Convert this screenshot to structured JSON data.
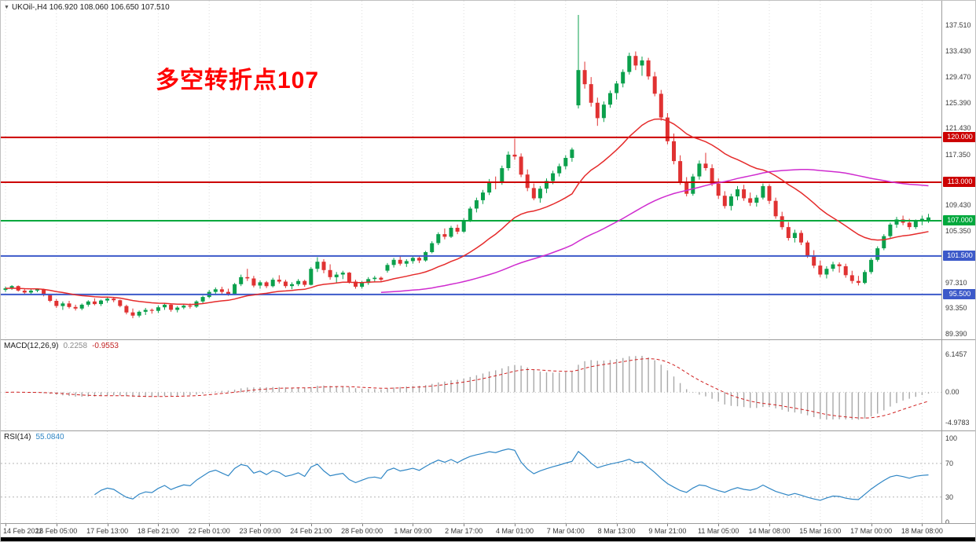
{
  "header": {
    "symbol_info": "UKOil-,H4 106.920 108.060 106.650 107.510",
    "annotation": "多空转折点107"
  },
  "colors": {
    "background": "#ffffff",
    "up_candle": "#0ba04c",
    "down_candle": "#e03232",
    "ma_fast": "#e52b2b",
    "ma_slow": "#cf2bcf",
    "grid": "#dcdcdc",
    "macd_histogram": "#a9a9a9",
    "macd_signal": "#d02020",
    "rsi_line": "#2f86c5",
    "annotation": "#ff0000",
    "axis_text": "#3a3a3a",
    "level_red": "#cc0000",
    "level_green": "#00a83c",
    "level_blue": "#3c59c9"
  },
  "chart_data": [
    {
      "type": "candlestick",
      "title": "UKOil-,H4",
      "timeframe": "H4",
      "ohlc_display": {
        "open": "106.920",
        "high": "108.060",
        "low": "106.650",
        "close": "107.510"
      },
      "y_range": [
        88.5,
        141.3
      ],
      "y_axis_ticks": [
        "137.510",
        "133.430",
        "129.470",
        "125.390",
        "121.430",
        "117.350",
        "109.430",
        "105.350",
        "97.310",
        "93.350",
        "89.390"
      ],
      "x_labels": [
        "14 Feb 2022",
        "16 Feb 05:00",
        "17 Feb 13:00",
        "18 Feb 21:00",
        "22 Feb 01:00",
        "23 Feb 09:00",
        "24 Feb 21:00",
        "28 Feb 00:00",
        "1 Mar 09:00",
        "2 Mar 17:00",
        "4 Mar 01:00",
        "7 Mar 04:00",
        "8 Mar 13:00",
        "9 Mar 21:00",
        "11 Mar 05:00",
        "14 Mar 08:00",
        "15 Mar 16:00",
        "17 Mar 00:00",
        "18 Mar 08:00"
      ],
      "x_label_step": 8,
      "hlines": [
        {
          "price": 120.0,
          "label": "120.000",
          "color": "#cc0000"
        },
        {
          "price": 113.0,
          "label": "113.000",
          "color": "#cc0000"
        },
        {
          "price": 107.0,
          "label": "107.000",
          "color": "#00a83c"
        },
        {
          "price": 101.5,
          "label": "101.500",
          "color": "#3c59c9"
        },
        {
          "price": 95.5,
          "label": "95.500",
          "color": "#3c59c9"
        }
      ],
      "moving_averages": [
        {
          "name": "ma-fast-line",
          "method": "ema",
          "period": 24,
          "color": "#e52b2b"
        },
        {
          "name": "ma-slow-line",
          "method": "sma",
          "period": 60,
          "color": "#cf2bcf"
        }
      ],
      "candles": [
        [
          96.2,
          96.75,
          95.9,
          96.45
        ],
        [
          96.45,
          96.95,
          96.2,
          96.8
        ],
        [
          96.8,
          96.9,
          95.95,
          96.1
        ],
        [
          96.1,
          96.4,
          95.6,
          95.8
        ],
        [
          95.8,
          96.3,
          95.55,
          96.1
        ],
        [
          96.1,
          96.45,
          95.85,
          96.3
        ],
        [
          96.3,
          96.4,
          95.2,
          95.4
        ],
        [
          95.4,
          95.6,
          94.3,
          94.5
        ],
        [
          94.5,
          94.8,
          93.4,
          93.7
        ],
        [
          93.7,
          94.4,
          93.1,
          94.1
        ],
        [
          94.1,
          94.5,
          93.3,
          93.55
        ],
        [
          93.55,
          93.9,
          93.0,
          93.3
        ],
        [
          93.3,
          94.1,
          93.05,
          93.9
        ],
        [
          93.9,
          94.6,
          93.6,
          94.4
        ],
        [
          94.4,
          94.9,
          93.8,
          94.0
        ],
        [
          94.0,
          94.7,
          93.7,
          94.55
        ],
        [
          94.55,
          95.1,
          94.2,
          94.85
        ],
        [
          94.85,
          95.0,
          94.3,
          94.6
        ],
        [
          94.6,
          94.7,
          93.5,
          93.7
        ],
        [
          93.7,
          93.9,
          92.4,
          92.7
        ],
        [
          92.7,
          93.3,
          91.8,
          92.2
        ],
        [
          92.2,
          93.0,
          91.9,
          92.8
        ],
        [
          92.8,
          93.4,
          92.3,
          93.1
        ],
        [
          93.1,
          93.3,
          92.5,
          92.95
        ],
        [
          92.95,
          93.8,
          92.6,
          93.5
        ],
        [
          93.5,
          94.2,
          93.1,
          93.9
        ],
        [
          93.9,
          94.1,
          92.8,
          93.1
        ],
        [
          93.1,
          93.7,
          92.7,
          93.45
        ],
        [
          93.45,
          94.0,
          93.2,
          93.75
        ],
        [
          93.75,
          94.1,
          93.3,
          93.6
        ],
        [
          93.6,
          94.6,
          93.4,
          94.4
        ],
        [
          94.4,
          95.3,
          94.1,
          95.1
        ],
        [
          95.1,
          96.2,
          94.9,
          95.9
        ],
        [
          95.9,
          96.6,
          95.4,
          96.3
        ],
        [
          96.3,
          96.7,
          95.6,
          95.9
        ],
        [
          95.9,
          96.4,
          95.3,
          95.5
        ],
        [
          95.5,
          97.3,
          95.4,
          97.1
        ],
        [
          97.1,
          98.6,
          96.8,
          98.2
        ],
        [
          98.2,
          99.5,
          97.6,
          98.0
        ],
        [
          98.0,
          98.4,
          96.6,
          96.9
        ],
        [
          96.9,
          97.7,
          96.4,
          97.4
        ],
        [
          97.4,
          97.6,
          96.5,
          96.8
        ],
        [
          96.8,
          98.1,
          96.6,
          97.8
        ],
        [
          97.8,
          98.5,
          97.2,
          97.5
        ],
        [
          97.5,
          97.8,
          96.5,
          96.8
        ],
        [
          96.8,
          97.4,
          96.3,
          97.1
        ],
        [
          97.1,
          97.9,
          96.8,
          97.6
        ],
        [
          97.6,
          97.8,
          96.7,
          97.0
        ],
        [
          97.0,
          99.8,
          96.9,
          99.5
        ],
        [
          99.5,
          101.3,
          99.0,
          100.6
        ],
        [
          100.6,
          101.0,
          98.8,
          99.3
        ],
        [
          99.3,
          100.2,
          97.8,
          98.2
        ],
        [
          98.2,
          99.0,
          97.3,
          98.6
        ],
        [
          98.6,
          99.2,
          97.9,
          98.9
        ],
        [
          98.9,
          99.0,
          97.2,
          97.5
        ],
        [
          97.5,
          97.8,
          96.4,
          96.7
        ],
        [
          96.7,
          97.6,
          96.4,
          97.3
        ],
        [
          97.3,
          98.2,
          97.0,
          97.9
        ],
        [
          97.9,
          98.4,
          97.4,
          98.1
        ],
        [
          98.1,
          98.3,
          97.5,
          97.8
        ],
        [
          99.2,
          100.4,
          98.9,
          100.1
        ],
        [
          100.1,
          101.2,
          99.7,
          100.9
        ],
        [
          100.9,
          101.4,
          100.0,
          100.3
        ],
        [
          100.3,
          101.0,
          99.8,
          100.7
        ],
        [
          100.7,
          101.5,
          100.3,
          101.2
        ],
        [
          101.2,
          101.4,
          100.4,
          100.8
        ],
        [
          100.8,
          102.3,
          100.6,
          102.1
        ],
        [
          102.1,
          103.8,
          101.9,
          103.5
        ],
        [
          103.5,
          105.2,
          103.2,
          104.9
        ],
        [
          104.9,
          105.8,
          104.1,
          104.5
        ],
        [
          104.5,
          106.2,
          104.3,
          105.9
        ],
        [
          105.9,
          106.4,
          104.9,
          105.3
        ],
        [
          105.3,
          107.4,
          105.1,
          107.1
        ],
        [
          107.1,
          109.2,
          106.8,
          108.9
        ],
        [
          108.9,
          110.6,
          108.3,
          110.2
        ],
        [
          110.2,
          111.8,
          109.6,
          111.4
        ],
        [
          111.4,
          113.5,
          111.0,
          113.1
        ],
        [
          113.1,
          113.9,
          111.9,
          112.9
        ],
        [
          112.9,
          115.6,
          112.6,
          115.2
        ],
        [
          115.2,
          117.8,
          114.8,
          117.3
        ],
        [
          117.3,
          119.8,
          116.5,
          117.0
        ],
        [
          117.0,
          117.5,
          113.8,
          114.2
        ],
        [
          114.2,
          115.0,
          111.6,
          112.1
        ],
        [
          112.1,
          112.8,
          110.2,
          110.5
        ],
        [
          110.5,
          112.4,
          109.8,
          112.0
        ],
        [
          112.0,
          113.6,
          111.3,
          113.2
        ],
        [
          113.2,
          114.8,
          112.7,
          114.4
        ],
        [
          114.4,
          115.9,
          113.9,
          115.5
        ],
        [
          115.5,
          117.2,
          115.0,
          116.8
        ],
        [
          116.8,
          118.4,
          116.2,
          118.1
        ],
        [
          125.0,
          139.1,
          124.5,
          130.5
        ],
        [
          130.5,
          131.8,
          127.6,
          128.3
        ],
        [
          128.3,
          129.4,
          124.8,
          125.4
        ],
        [
          125.4,
          126.2,
          121.8,
          123.0
        ],
        [
          123.0,
          125.6,
          122.4,
          125.1
        ],
        [
          125.1,
          127.3,
          124.6,
          126.9
        ],
        [
          126.9,
          128.8,
          125.9,
          128.4
        ],
        [
          128.4,
          130.6,
          127.8,
          130.2
        ],
        [
          130.2,
          133.2,
          129.8,
          132.7
        ],
        [
          132.7,
          133.4,
          130.5,
          131.2
        ],
        [
          131.2,
          132.6,
          129.6,
          132.0
        ],
        [
          132.0,
          132.4,
          129.0,
          129.5
        ],
        [
          129.5,
          130.2,
          126.4,
          126.8
        ],
        [
          126.8,
          127.4,
          122.6,
          123.1
        ],
        [
          123.1,
          123.8,
          118.9,
          119.4
        ],
        [
          119.4,
          120.6,
          115.8,
          116.3
        ],
        [
          116.3,
          117.2,
          112.6,
          113.1
        ],
        [
          113.1,
          113.8,
          110.8,
          111.2
        ],
        [
          111.2,
          114.3,
          110.9,
          113.9
        ],
        [
          113.9,
          116.4,
          113.4,
          115.9
        ],
        [
          115.9,
          117.6,
          114.8,
          115.2
        ],
        [
          115.2,
          115.8,
          112.4,
          112.8
        ],
        [
          112.8,
          113.6,
          110.4,
          110.9
        ],
        [
          110.9,
          111.6,
          108.9,
          109.3
        ],
        [
          109.3,
          111.2,
          108.6,
          110.8
        ],
        [
          110.8,
          112.4,
          110.2,
          111.9
        ],
        [
          111.9,
          112.6,
          110.1,
          110.5
        ],
        [
          110.5,
          111.4,
          109.3,
          109.8
        ],
        [
          109.8,
          111.0,
          109.2,
          110.6
        ],
        [
          110.6,
          112.8,
          110.3,
          112.4
        ],
        [
          112.4,
          112.7,
          109.6,
          110.1
        ],
        [
          110.1,
          110.6,
          107.3,
          107.7
        ],
        [
          107.7,
          108.4,
          105.6,
          106.0
        ],
        [
          106.0,
          106.8,
          103.9,
          104.3
        ],
        [
          104.3,
          105.6,
          103.6,
          105.1
        ],
        [
          105.1,
          105.5,
          103.2,
          103.6
        ],
        [
          103.6,
          103.9,
          101.2,
          101.6
        ],
        [
          101.6,
          102.4,
          99.6,
          100.0
        ],
        [
          100.0,
          100.8,
          98.2,
          98.6
        ],
        [
          98.6,
          99.9,
          98.0,
          99.5
        ],
        [
          99.5,
          100.6,
          99.1,
          100.2
        ],
        [
          100.2,
          100.5,
          98.9,
          99.9
        ],
        [
          99.9,
          100.3,
          98.1,
          98.5
        ],
        [
          98.5,
          99.2,
          97.2,
          97.6
        ],
        [
          97.6,
          98.4,
          96.9,
          97.3
        ],
        [
          97.3,
          99.3,
          97.1,
          99.0
        ],
        [
          99.0,
          101.2,
          98.7,
          100.9
        ],
        [
          100.9,
          103.0,
          100.6,
          102.7
        ],
        [
          102.7,
          104.9,
          102.4,
          104.6
        ],
        [
          104.6,
          106.7,
          104.3,
          106.4
        ],
        [
          106.4,
          107.6,
          105.9,
          107.2
        ],
        [
          107.2,
          107.8,
          106.3,
          106.7
        ],
        [
          106.7,
          107.3,
          105.6,
          106.0
        ],
        [
          106.0,
          107.2,
          105.7,
          106.9
        ],
        [
          106.9,
          107.8,
          106.3,
          107.3
        ],
        [
          106.92,
          108.06,
          106.65,
          107.51
        ]
      ]
    },
    {
      "type": "macd",
      "label": "MACD(12,26,9)",
      "params": {
        "fast": 12,
        "slow": 26,
        "signal": 9
      },
      "values": {
        "macd": "0.2258",
        "signal": "-0.9553"
      },
      "y_axis_ticks": [
        "6.1457",
        "0.00",
        "-4.9783"
      ],
      "y_range": [
        -6.1,
        8.5
      ]
    },
    {
      "type": "rsi",
      "label": "RSI(14)",
      "period": 14,
      "value": "55.0840",
      "levels": [
        70,
        30
      ],
      "y_axis_ticks": [
        "100",
        "70",
        "30",
        "0"
      ],
      "y_range": [
        -1,
        108.3
      ]
    }
  ]
}
